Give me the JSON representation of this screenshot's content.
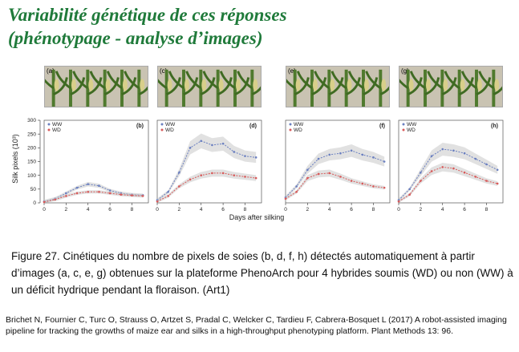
{
  "slide": {
    "title_line1": "Variabilité génétique de ces réponses",
    "title_line2": "(phénotypage - analyse d’images)"
  },
  "photos": [
    {
      "tag": "(a)",
      "plants": 6
    },
    {
      "tag": "(c)",
      "plants": 6
    },
    {
      "tag": "(e)",
      "plants": 6
    },
    {
      "tag": "(g)",
      "plants": 6
    }
  ],
  "chart_data": {
    "type": "line",
    "ylabel": "Silk pixels (10³)",
    "xlabel": "Days after silking",
    "ylim": [
      0,
      300
    ],
    "xlim": [
      0,
      9.5
    ],
    "yticks": [
      0,
      50,
      100,
      150,
      200,
      250,
      300
    ],
    "xticks": [
      0,
      2,
      4,
      6,
      8
    ],
    "legend": [
      "WW",
      "WD"
    ],
    "panels": [
      {
        "label": "(b)",
        "series": [
          {
            "name": "WW",
            "color": "#6a7fc0",
            "x": [
              0,
              1,
              2,
              3,
              4,
              5,
              6,
              7,
              8,
              9
            ],
            "y": [
              5,
              15,
              35,
              55,
              68,
              62,
              45,
              35,
              30,
              28
            ]
          },
          {
            "name": "WD",
            "color": "#d85a5a",
            "x": [
              0,
              1,
              2,
              3,
              4,
              5,
              6,
              7,
              8,
              9
            ],
            "y": [
              3,
              12,
              25,
              35,
              40,
              40,
              35,
              30,
              27,
              25
            ]
          }
        ]
      },
      {
        "label": "(d)",
        "series": [
          {
            "name": "WW",
            "color": "#6a7fc0",
            "x": [
              0,
              1,
              2,
              3,
              4,
              5,
              6,
              7,
              8,
              9
            ],
            "y": [
              10,
              40,
              110,
              200,
              225,
              210,
              215,
              185,
              170,
              165
            ]
          },
          {
            "name": "WD",
            "color": "#d85a5a",
            "x": [
              0,
              1,
              2,
              3,
              4,
              5,
              6,
              7,
              8,
              9
            ],
            "y": [
              5,
              25,
              60,
              85,
              100,
              108,
              108,
              100,
              95,
              90
            ]
          }
        ]
      },
      {
        "label": "(f)",
        "series": [
          {
            "name": "WW",
            "color": "#6a7fc0",
            "x": [
              0,
              1,
              2,
              3,
              4,
              5,
              6,
              7,
              8,
              9
            ],
            "y": [
              20,
              60,
              120,
              160,
              175,
              180,
              190,
              175,
              165,
              150
            ]
          },
          {
            "name": "WD",
            "color": "#d85a5a",
            "x": [
              0,
              1,
              2,
              3,
              4,
              5,
              6,
              7,
              8,
              9
            ],
            "y": [
              15,
              40,
              90,
              105,
              108,
              95,
              80,
              70,
              60,
              55
            ]
          }
        ]
      },
      {
        "label": "(h)",
        "series": [
          {
            "name": "WW",
            "color": "#6a7fc0",
            "x": [
              0,
              1,
              2,
              3,
              4,
              5,
              6,
              7,
              8,
              9
            ],
            "y": [
              10,
              50,
              110,
              170,
              195,
              190,
              180,
              160,
              140,
              120
            ]
          },
          {
            "name": "WD",
            "color": "#d85a5a",
            "x": [
              0,
              1,
              2,
              3,
              4,
              5,
              6,
              7,
              8,
              9
            ],
            "y": [
              5,
              30,
              80,
              115,
              130,
              125,
              110,
              95,
              80,
              70
            ]
          }
        ]
      }
    ]
  },
  "caption": "Figure 27. Cinétiques du nombre de pixels de soies (b, d, f, h) détectés automatiquement à partir d’images (a, c, e, g) obtenues sur la plateforme PhenoArch pour 4 hybrides soumis (WD) ou non (WW) à un déficit hydrique pendant la floraison. (Art1)",
  "reference": "Brichet N, Fournier C, Turc O, Strauss O, Artzet S, Pradal C, Welcker C, Tardieu F, Cabrera-Bosquet L (2017) A robot-assisted imaging pipeline for tracking the growths of maize ear and silks in a high-throughput phenotyping platform. Plant Methods 13: 96."
}
